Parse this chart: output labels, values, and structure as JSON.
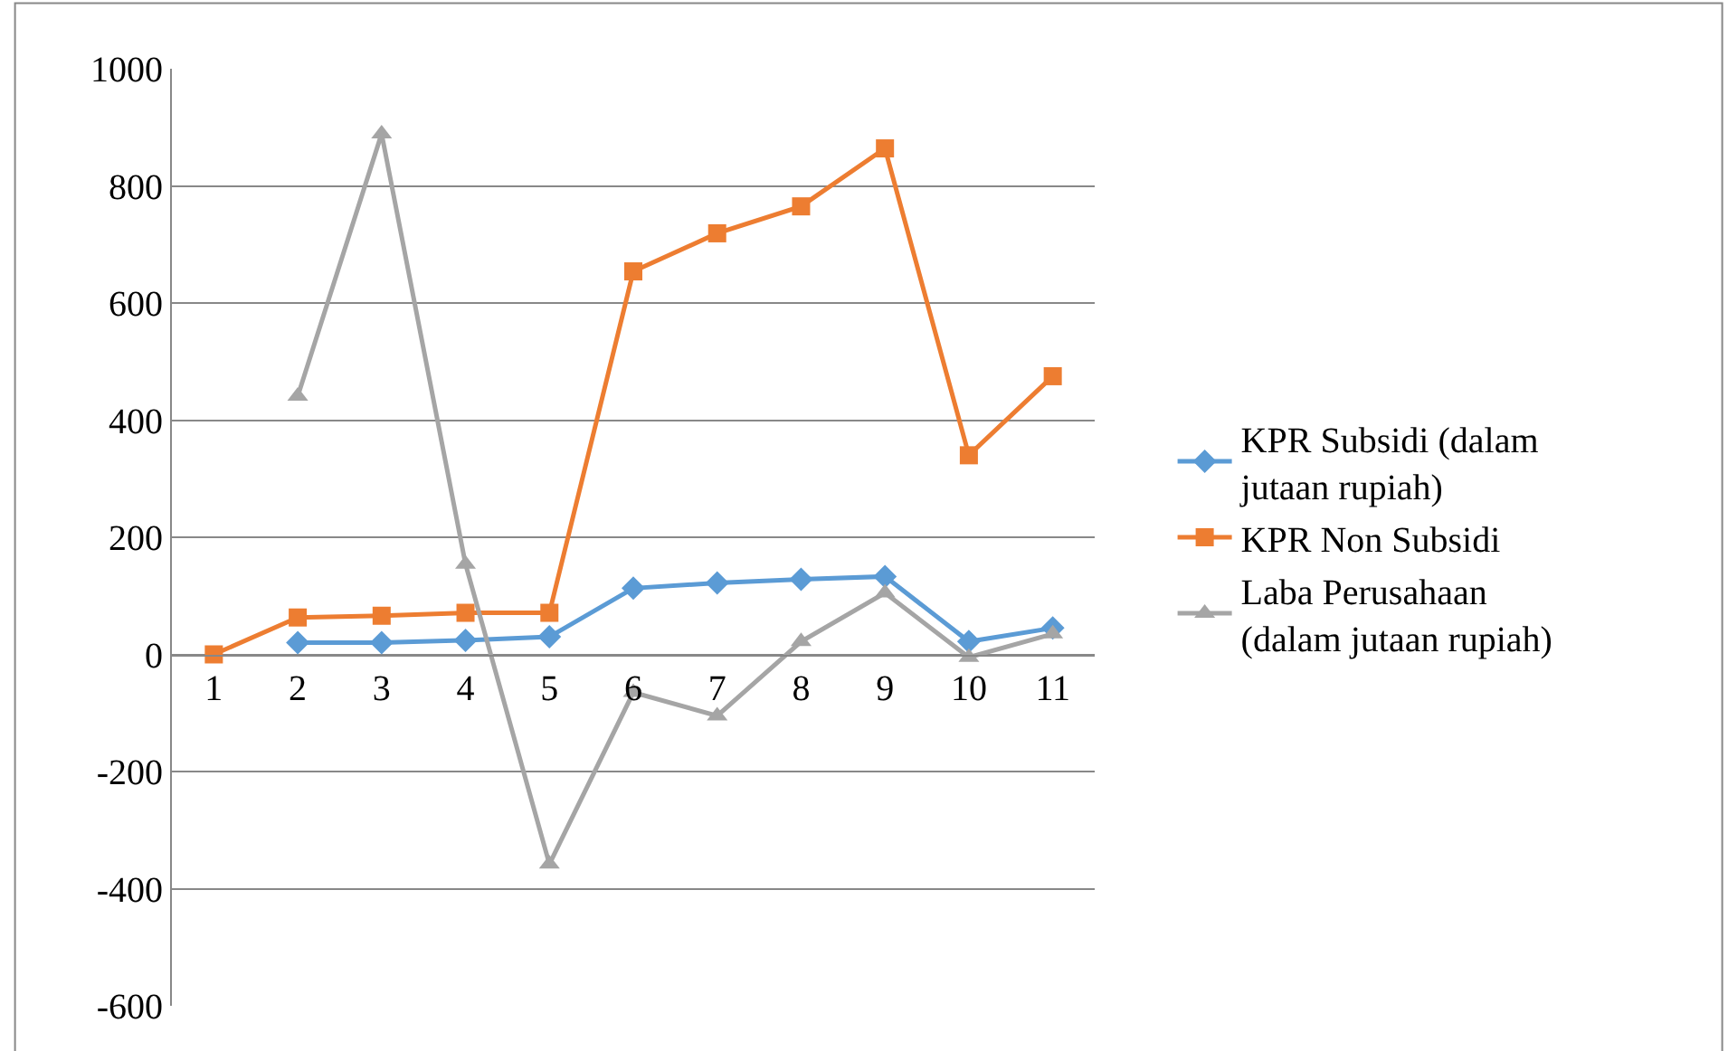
{
  "chart_data": {
    "type": "line",
    "categories": [
      "1",
      "2",
      "3",
      "4",
      "5",
      "6",
      "7",
      "8",
      "9",
      "10",
      "11"
    ],
    "series": [
      {
        "name": "KPR Subsidi (dalam jutaan rupiah)",
        "color": "#5b9bd5",
        "marker": "diamond",
        "values": [
          null,
          20,
          20,
          24,
          30,
          113,
          122,
          128,
          133,
          22,
          45
        ]
      },
      {
        "name": "KPR Non Subsidi",
        "color": "#ed7d31",
        "marker": "square",
        "values": [
          0,
          63,
          66,
          71,
          71,
          654,
          719,
          765,
          864,
          340,
          475
        ]
      },
      {
        "name": "Laba Perusahaan (dalam jutaan rupiah)",
        "color": "#a5a5a5",
        "marker": "triangle",
        "values": [
          null,
          441,
          889,
          154,
          -358,
          -65,
          -105,
          22,
          105,
          -5,
          35
        ]
      }
    ],
    "ylim": [
      -600,
      1000
    ],
    "yticks": [
      -600,
      -400,
      -200,
      0,
      200,
      400,
      600,
      800,
      1000
    ],
    "grid": "y",
    "legend": "right",
    "line_style": "solid"
  }
}
